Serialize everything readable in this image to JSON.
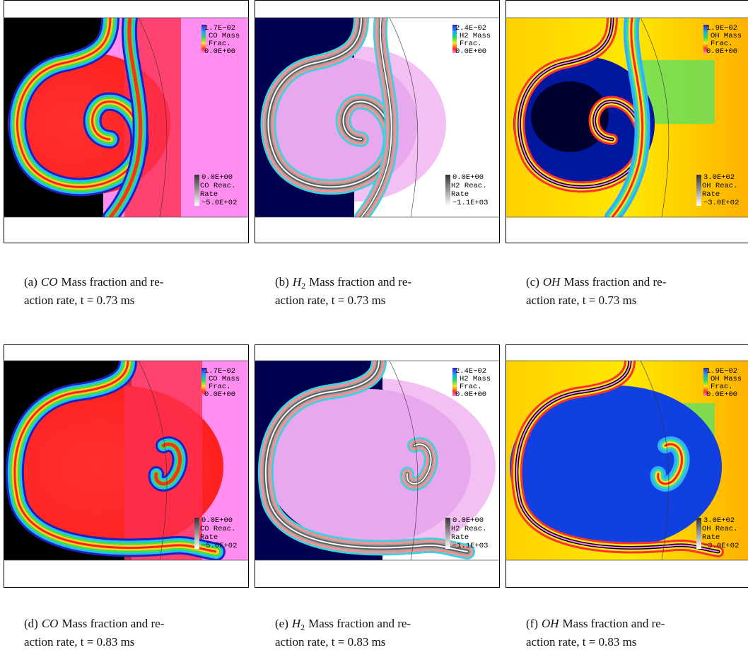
{
  "panels": [
    {
      "label": "(a)",
      "species": "CO",
      "caption_rest": "Mass fraction and re-",
      "caption_line2": "action rate, t = 0.73 ms",
      "mass_legend": {
        "max": "1.7E−02",
        "name": "CO Mass",
        "unit": "Frac.",
        "min": "0.0E+00"
      },
      "rate_legend": {
        "max": "0.0E+00",
        "name": "CO Reac.",
        "unit": "Rate",
        "min": "−5.0E+02"
      }
    },
    {
      "label": "(b)",
      "species": "H",
      "species_subscript": "2",
      "caption_rest": "Mass fraction and re-",
      "caption_line2": "action rate, t = 0.73 ms",
      "mass_legend": {
        "max": "2.4E−02",
        "name": "H2 Mass",
        "unit": "Frac.",
        "min": "0.0E+00"
      },
      "rate_legend": {
        "max": "0.0E+00",
        "name": "H2 Reac.",
        "unit": "Rate",
        "min": "−1.1E+03"
      }
    },
    {
      "label": "(c)",
      "species": "OH",
      "caption_rest": "Mass fraction and re-",
      "caption_line2": "action rate, t = 0.73 ms",
      "mass_legend": {
        "max": "1.9E−02",
        "name": "OH Mass",
        "unit": "Frac.",
        "min": "0.0E+00"
      },
      "rate_legend": {
        "max": "3.0E+02",
        "name": "OH Reac.",
        "unit": "Rate",
        "min": "−3.0E+02"
      }
    },
    {
      "label": "(d)",
      "species": "CO",
      "caption_rest": "Mass fraction and re-",
      "caption_line2": "action rate, t = 0.83 ms",
      "mass_legend": {
        "max": "1.7E−02",
        "name": "CO Mass",
        "unit": "Frac.",
        "min": "0.0E+00"
      },
      "rate_legend": {
        "max": "0.0E+00",
        "name": "CO Reac.",
        "unit": "Rate",
        "min": "−5.0E+02"
      }
    },
    {
      "label": "(e)",
      "species": "H",
      "species_subscript": "2",
      "caption_rest": "Mass fraction and re-",
      "caption_line2": "action rate, t = 0.83 ms",
      "mass_legend": {
        "max": "2.4E−02",
        "name": "H2 Mass",
        "unit": "Frac.",
        "min": "0.0E+00"
      },
      "rate_legend": {
        "max": "0.0E+00",
        "name": "H2 Reac.",
        "unit": "Rate",
        "min": "−1.1E+03"
      }
    },
    {
      "label": "(f)",
      "species": "OH",
      "caption_rest": "Mass fraction and re-",
      "caption_line2": "action rate, t = 0.83 ms",
      "mass_legend": {
        "max": "1.9E−02",
        "name": "OH Mass",
        "unit": "Frac.",
        "min": "0.0E+00"
      },
      "rate_legend": {
        "max": "3.0E+02",
        "name": "OH Reac.",
        "unit": "Rate",
        "min": "−3.0E+02"
      }
    }
  ]
}
